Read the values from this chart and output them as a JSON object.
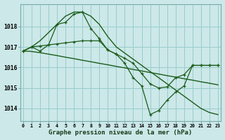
{
  "title": "Graphe pression niveau de la mer (hPa)",
  "background_color": "#cce8e8",
  "grid_color": "#99cccc",
  "line_color": "#1a5c1a",
  "yticks": [
    1014,
    1015,
    1016,
    1017,
    1018
  ],
  "ylim": [
    1013.4,
    1019.1
  ],
  "xlim": [
    -0.3,
    23.3
  ],
  "series": [
    {
      "x": [
        0,
        1,
        2,
        3,
        4,
        5,
        6,
        7,
        8,
        9,
        10,
        11,
        12,
        13,
        14,
        15,
        16,
        17,
        18,
        19,
        20,
        21,
        22,
        23
      ],
      "y": [
        1016.8,
        1017.0,
        1017.3,
        1017.7,
        1018.1,
        1018.5,
        1018.7,
        1018.7,
        1018.5,
        1018.1,
        1017.5,
        1017.0,
        1016.7,
        1016.4,
        1016.1,
        1015.8,
        1015.5,
        1015.2,
        1014.9,
        1014.6,
        1014.3,
        1014.0,
        1013.8,
        1013.7
      ],
      "marker": false
    },
    {
      "x": [
        0,
        1,
        2,
        3,
        4,
        5,
        6,
        7,
        8,
        9,
        10,
        11,
        12,
        13,
        14,
        15,
        16,
        17,
        18,
        19,
        20,
        21,
        22,
        23
      ],
      "y": [
        1016.8,
        1016.78,
        1016.72,
        1016.65,
        1016.58,
        1016.5,
        1016.43,
        1016.35,
        1016.28,
        1016.2,
        1016.13,
        1016.05,
        1015.98,
        1015.9,
        1015.83,
        1015.75,
        1015.68,
        1015.6,
        1015.53,
        1015.45,
        1015.38,
        1015.3,
        1015.23,
        1015.15
      ],
      "marker": false
    },
    {
      "x": [
        0,
        1,
        2,
        3,
        4,
        5,
        6,
        7,
        8,
        9,
        10,
        11,
        12,
        13,
        14,
        15,
        16,
        17,
        18,
        19,
        20,
        21,
        22,
        23
      ],
      "y": [
        1016.8,
        1017.0,
        1017.05,
        1017.1,
        1017.15,
        1017.2,
        1017.25,
        1017.3,
        1017.3,
        1017.3,
        1016.85,
        1016.65,
        1016.45,
        1016.2,
        1015.7,
        1015.2,
        1015.0,
        1015.05,
        1015.5,
        1015.65,
        1016.1,
        1016.1,
        1016.1,
        1016.1
      ],
      "marker": true
    },
    {
      "x": [
        0,
        1,
        2,
        3,
        4,
        5,
        6,
        7,
        8,
        9,
        10,
        11,
        12,
        13,
        14,
        15,
        16,
        17,
        18,
        19,
        20,
        21,
        22,
        23
      ],
      "y": [
        1016.8,
        1017.0,
        1016.8,
        1017.1,
        1018.1,
        1018.2,
        1018.6,
        1018.7,
        1017.9,
        1017.4,
        1016.85,
        1016.65,
        1016.2,
        1015.5,
        1015.1,
        1013.7,
        1013.9,
        1014.4,
        1014.8,
        1015.1,
        1016.1,
        1016.1,
        1016.1,
        1016.1
      ],
      "marker": true
    }
  ]
}
